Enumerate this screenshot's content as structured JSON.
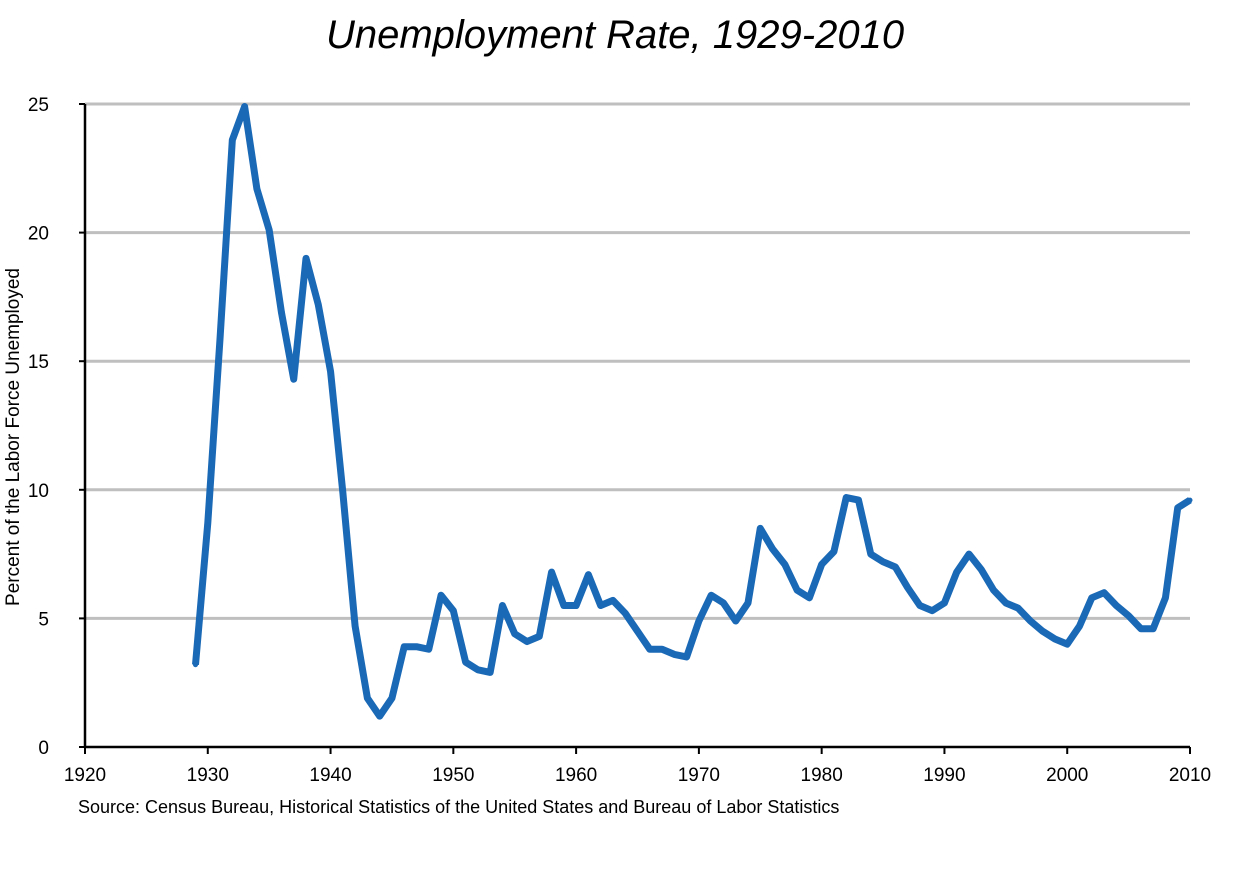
{
  "chart_data": {
    "type": "line",
    "title": "Unemployment Rate, 1929-2010",
    "xlabel": "",
    "ylabel": "Percent of the Labor Force Unemployed",
    "source": "Source: Census Bureau, Historical Statistics of the United States and Bureau of Labor Statistics",
    "xlim": [
      1920,
      2010
    ],
    "ylim": [
      0,
      25
    ],
    "x_ticks": [
      "1920",
      "1930",
      "1940",
      "1950",
      "1960",
      "1970",
      "1980",
      "1990",
      "2000",
      "2010"
    ],
    "y_ticks": [
      "0",
      "5",
      "10",
      "15",
      "20",
      "25"
    ],
    "grid": "horizontal",
    "line_color": "#1a69b6",
    "grid_color": "#bfbfbf",
    "series": [
      {
        "x": [
          1929,
          1930,
          1931,
          1932,
          1933,
          1934,
          1935,
          1936,
          1937,
          1938,
          1939,
          1940,
          1941,
          1942,
          1943,
          1944,
          1945,
          1946,
          1947,
          1948,
          1949,
          1950,
          1951,
          1952,
          1953,
          1954,
          1955,
          1956,
          1957,
          1958,
          1959,
          1960,
          1961,
          1962,
          1963,
          1964,
          1965,
          1966,
          1967,
          1968,
          1969,
          1970,
          1971,
          1972,
          1973,
          1974,
          1975,
          1976,
          1977,
          1978,
          1979,
          1980,
          1981,
          1982,
          1983,
          1984,
          1985,
          1986,
          1987,
          1988,
          1989,
          1990,
          1991,
          1992,
          1993,
          1994,
          1995,
          1996,
          1997,
          1998,
          1999,
          2000,
          2001,
          2002,
          2003,
          2004,
          2005,
          2006,
          2007,
          2008,
          2009,
          2010
        ],
        "y": [
          3.2,
          8.7,
          15.9,
          23.6,
          24.9,
          21.7,
          20.1,
          16.9,
          14.3,
          19.0,
          17.2,
          14.6,
          9.9,
          4.7,
          1.9,
          1.2,
          1.9,
          3.9,
          3.9,
          3.8,
          5.9,
          5.3,
          3.3,
          3.0,
          2.9,
          5.5,
          4.4,
          4.1,
          4.3,
          6.8,
          5.5,
          5.5,
          6.7,
          5.5,
          5.7,
          5.2,
          4.5,
          3.8,
          3.8,
          3.6,
          3.5,
          4.9,
          5.9,
          5.6,
          4.9,
          5.6,
          8.5,
          7.7,
          7.1,
          6.1,
          5.8,
          7.1,
          7.6,
          9.7,
          9.6,
          7.5,
          7.2,
          7.0,
          6.2,
          5.5,
          5.3,
          5.6,
          6.8,
          7.5,
          6.9,
          6.1,
          5.6,
          5.4,
          4.9,
          4.5,
          4.2,
          4.0,
          4.7,
          5.8,
          6.0,
          5.5,
          5.1,
          4.6,
          4.6,
          5.8,
          9.3,
          9.6
        ]
      }
    ]
  }
}
